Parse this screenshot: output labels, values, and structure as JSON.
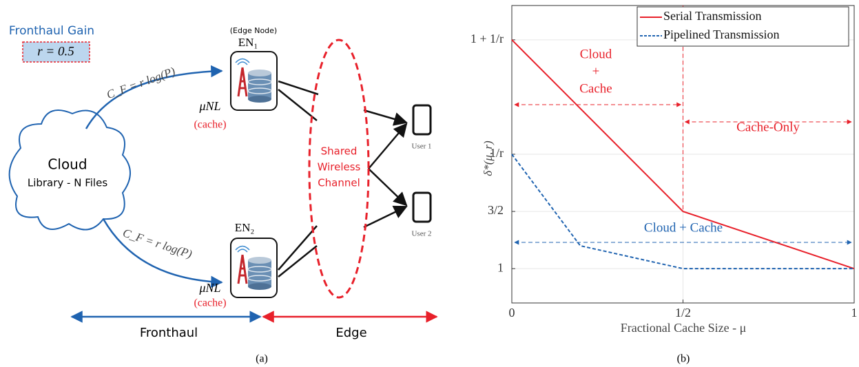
{
  "diagram": {
    "gain_title": "Fronthaul Gain",
    "gain_value": "r = 0.5",
    "cloud": {
      "title": "Cloud",
      "subtitle": "Library - N Files"
    },
    "link_labels": [
      "C_F = r log(P)",
      "C_F = r log(P)"
    ],
    "edge_node_note": "(Edge Node)",
    "nodes": [
      {
        "label": "EN₁",
        "storage": "μNL",
        "storage_note": "(cache)"
      },
      {
        "label": "EN₂",
        "storage": "μNL",
        "storage_note": "(cache)"
      }
    ],
    "channel": [
      "Shared",
      "Wireless",
      "Channel"
    ],
    "users": [
      "User 1",
      "User 2"
    ],
    "segments": [
      "Fronthaul",
      "Edge"
    ],
    "caption": "(a)"
  },
  "chart_data": {
    "type": "line",
    "caption": "(b)",
    "xlabel": "Fractional Cache Size - μ",
    "ylabel": "δ*(μ, r)",
    "xlim": [
      0,
      1
    ],
    "ylim": [
      0.7,
      3.3
    ],
    "xticks": [
      0,
      {
        "value": 0.5,
        "label": "1/2"
      },
      1
    ],
    "yticks": [
      1,
      {
        "value": 1.5,
        "label": "3/2"
      },
      {
        "value": 2,
        "label": "1/r"
      },
      {
        "value": 3,
        "label": "1 + 1/r"
      }
    ],
    "grid": true,
    "legend": "top-right",
    "series": [
      {
        "name": "Serial Transmission",
        "color": "#e8202a",
        "style": "solid",
        "x": [
          0,
          0.5,
          1
        ],
        "values": [
          3,
          1.5,
          1
        ]
      },
      {
        "name": "Pipelined Transmission",
        "color": "#1f63b0",
        "style": "dashed",
        "x": [
          0,
          0.2,
          0.5,
          1
        ],
        "values": [
          2,
          1.2,
          1,
          1
        ]
      }
    ],
    "annotations": [
      {
        "lines": [
          "Cloud",
          "+",
          "Cache"
        ],
        "color": "#e8202a"
      },
      {
        "lines": [
          "Cache-Only"
        ],
        "color": "#e8202a"
      },
      {
        "lines": [
          "Cloud + Cache"
        ],
        "color": "#1f63b0"
      }
    ]
  }
}
